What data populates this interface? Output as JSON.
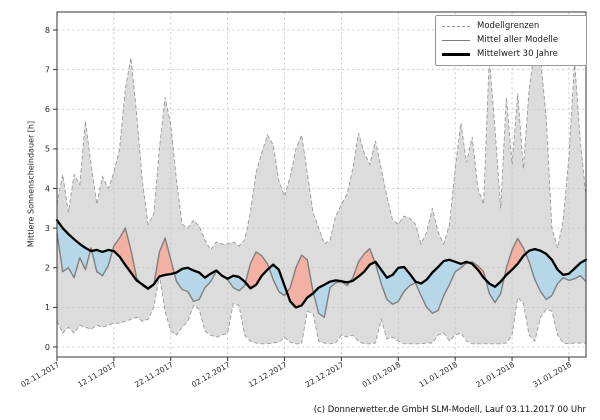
{
  "footer": {
    "credit": "(c) Donnerwetter.de GmbH SLM-Modell, Lauf 03.11.2017 00 Uhr"
  },
  "chart_data": {
    "type": "line",
    "ylabel": "Mittlere Sonnenscheindauer [h]",
    "xlabel": "",
    "grid": true,
    "x_axis": {
      "tick_days": [
        0,
        10,
        20,
        30,
        40,
        50,
        60,
        70,
        80,
        90
      ],
      "tick_labels": [
        "02.11.2017",
        "12.11.2017",
        "22.11.2017",
        "02.12.2017",
        "12.12.2017",
        "22.12.2017",
        "01.01.2018",
        "11.01.2018",
        "21.01.2018",
        "31.01.2018"
      ],
      "range_days": [
        0,
        93
      ]
    },
    "y_axis": {
      "ticks": [
        0,
        1,
        2,
        3,
        4,
        5,
        6,
        7,
        8
      ],
      "range": [
        -0.25,
        8.45
      ]
    },
    "legend": {
      "position": "top-right",
      "items": [
        {
          "label": "Modellgrenzen",
          "style": "dashed-gray"
        },
        {
          "label": "Mittel aller Modelle",
          "style": "solid-gray"
        },
        {
          "label": "Mittelwert 30 Jahre",
          "style": "thick-black"
        }
      ]
    },
    "colors": {
      "band_fill": "#dcdcdc",
      "band_edge": "#999999",
      "fill_above_mean": "#f2b1a2",
      "fill_below_mean": "#b5d7e8",
      "mean_line": "#7f7f7f",
      "mean30_line": "#000000",
      "grid": "#c6c6c6",
      "spine": "#333333"
    },
    "x_step_days": 1,
    "series": [
      {
        "role": "model_max",
        "name": "Modellgrenzen (Maximum)",
        "style": "dashed-gray",
        "values": [
          3.6,
          4.35,
          3.4,
          4.35,
          4.1,
          5.7,
          4.6,
          3.6,
          4.3,
          4.0,
          4.4,
          5.0,
          6.5,
          7.3,
          5.9,
          4.2,
          3.1,
          3.35,
          5.0,
          6.3,
          5.6,
          4.2,
          3.1,
          3.0,
          3.2,
          3.05,
          2.7,
          2.45,
          2.65,
          2.6,
          2.6,
          2.65,
          2.55,
          2.7,
          3.4,
          4.4,
          4.9,
          5.35,
          5.1,
          4.2,
          3.8,
          4.3,
          5.0,
          5.35,
          4.4,
          3.4,
          3.0,
          2.6,
          2.7,
          3.3,
          3.6,
          3.85,
          4.5,
          5.4,
          4.9,
          4.6,
          5.2,
          4.5,
          3.8,
          3.2,
          3.1,
          3.3,
          3.25,
          3.1,
          2.6,
          2.9,
          3.5,
          2.9,
          2.6,
          3.1,
          4.5,
          5.65,
          4.65,
          5.3,
          4.0,
          3.6,
          7.3,
          5.5,
          3.5,
          6.3,
          4.6,
          6.4,
          4.5,
          6.5,
          7.55,
          7.3,
          5.8,
          3.0,
          2.5,
          3.2,
          4.8,
          7.2,
          5.2,
          3.8
        ]
      },
      {
        "role": "model_min",
        "name": "Modellgrenzen (Minimum)",
        "style": "dashed-gray",
        "values": [
          0.65,
          0.35,
          0.5,
          0.35,
          0.55,
          0.5,
          0.45,
          0.55,
          0.5,
          0.55,
          0.6,
          0.6,
          0.65,
          0.7,
          0.75,
          0.65,
          0.7,
          1.0,
          1.8,
          0.9,
          0.4,
          0.3,
          0.5,
          0.65,
          1.05,
          0.95,
          0.4,
          0.3,
          0.25,
          0.3,
          0.35,
          1.1,
          1.05,
          0.3,
          0.15,
          0.1,
          0.08,
          0.08,
          0.1,
          0.12,
          0.25,
          0.12,
          0.08,
          0.08,
          0.9,
          0.85,
          0.15,
          0.1,
          0.08,
          0.1,
          0.3,
          0.25,
          0.3,
          0.15,
          0.08,
          0.08,
          0.1,
          0.7,
          0.2,
          0.25,
          0.15,
          0.08,
          0.08,
          0.08,
          0.08,
          0.1,
          0.1,
          0.3,
          0.35,
          0.15,
          0.3,
          0.35,
          0.15,
          0.08,
          0.08,
          0.08,
          0.08,
          0.08,
          0.08,
          0.1,
          0.3,
          1.25,
          1.1,
          0.3,
          0.15,
          0.75,
          0.95,
          0.9,
          0.3,
          0.1,
          0.08,
          0.1,
          0.1,
          0.1
        ]
      },
      {
        "role": "model_mean",
        "name": "Mittel aller Modelle",
        "style": "solid-gray",
        "values": [
          2.87,
          1.9,
          2.0,
          1.75,
          2.25,
          1.95,
          2.5,
          1.9,
          1.8,
          2.05,
          2.55,
          2.75,
          3.0,
          2.45,
          1.75,
          1.55,
          1.45,
          1.55,
          2.4,
          2.75,
          2.2,
          1.65,
          1.45,
          1.4,
          1.15,
          1.2,
          1.5,
          1.65,
          1.9,
          1.82,
          1.7,
          1.5,
          1.42,
          1.55,
          2.1,
          2.4,
          2.3,
          2.1,
          1.7,
          1.4,
          1.3,
          1.5,
          2.0,
          2.32,
          2.2,
          1.4,
          0.85,
          0.75,
          1.5,
          1.62,
          1.65,
          1.55,
          1.75,
          2.15,
          2.35,
          2.48,
          2.1,
          1.6,
          1.2,
          1.08,
          1.15,
          1.4,
          1.55,
          1.62,
          1.3,
          1.0,
          0.85,
          0.92,
          1.3,
          1.58,
          1.9,
          2.0,
          2.12,
          2.15,
          2.05,
          1.9,
          1.35,
          1.12,
          1.35,
          2.0,
          2.45,
          2.74,
          2.5,
          2.15,
          1.7,
          1.4,
          1.2,
          1.3,
          1.6,
          1.75,
          1.68,
          1.72,
          1.8,
          1.65
        ]
      },
      {
        "role": "mean_30y",
        "name": "Mittelwert 30 Jahre",
        "style": "thick-black",
        "values": [
          3.2,
          3.0,
          2.85,
          2.72,
          2.6,
          2.5,
          2.42,
          2.45,
          2.4,
          2.45,
          2.42,
          2.28,
          2.07,
          1.88,
          1.68,
          1.58,
          1.48,
          1.58,
          1.78,
          1.82,
          1.84,
          1.88,
          1.97,
          2.0,
          1.93,
          1.88,
          1.75,
          1.85,
          1.93,
          1.8,
          1.72,
          1.8,
          1.77,
          1.65,
          1.48,
          1.57,
          1.8,
          1.95,
          2.08,
          1.95,
          1.55,
          1.15,
          1.0,
          1.05,
          1.25,
          1.35,
          1.5,
          1.57,
          1.65,
          1.68,
          1.66,
          1.63,
          1.67,
          1.78,
          1.9,
          2.08,
          2.15,
          1.95,
          1.75,
          1.82,
          2.0,
          2.02,
          1.85,
          1.65,
          1.6,
          1.7,
          1.88,
          2.02,
          2.17,
          2.2,
          2.15,
          2.1,
          2.15,
          2.1,
          1.95,
          1.75,
          1.6,
          1.52,
          1.65,
          1.82,
          1.95,
          2.1,
          2.3,
          2.43,
          2.47,
          2.43,
          2.35,
          2.2,
          1.95,
          1.82,
          1.85,
          1.98,
          2.12,
          2.2
        ]
      }
    ]
  }
}
